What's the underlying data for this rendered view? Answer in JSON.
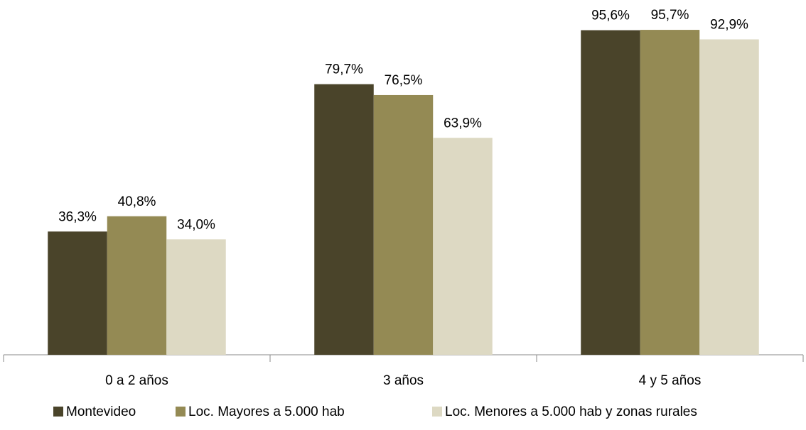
{
  "chart_data": {
    "type": "bar",
    "categories": [
      "0 a 2 años",
      "3 años",
      "4 y 5 años"
    ],
    "series": [
      {
        "name": "Montevideo",
        "color": "#4a442a",
        "values": [
          36.3,
          79.7,
          95.6
        ],
        "value_labels": [
          "36,3%",
          "79,7%",
          "95,6%"
        ]
      },
      {
        "name": "Loc. Mayores a 5.000 hab",
        "color": "#948a54",
        "values": [
          40.8,
          76.5,
          95.7
        ],
        "value_labels": [
          "40,8%",
          "76,5%",
          "95,7%"
        ]
      },
      {
        "name": "Loc. Menores a 5.000 hab y zonas rurales",
        "color": "#ddd9c3",
        "values": [
          34.0,
          63.9,
          92.9
        ],
        "value_labels": [
          "34,0%",
          "63,9%",
          "92,9%"
        ]
      }
    ]
  }
}
